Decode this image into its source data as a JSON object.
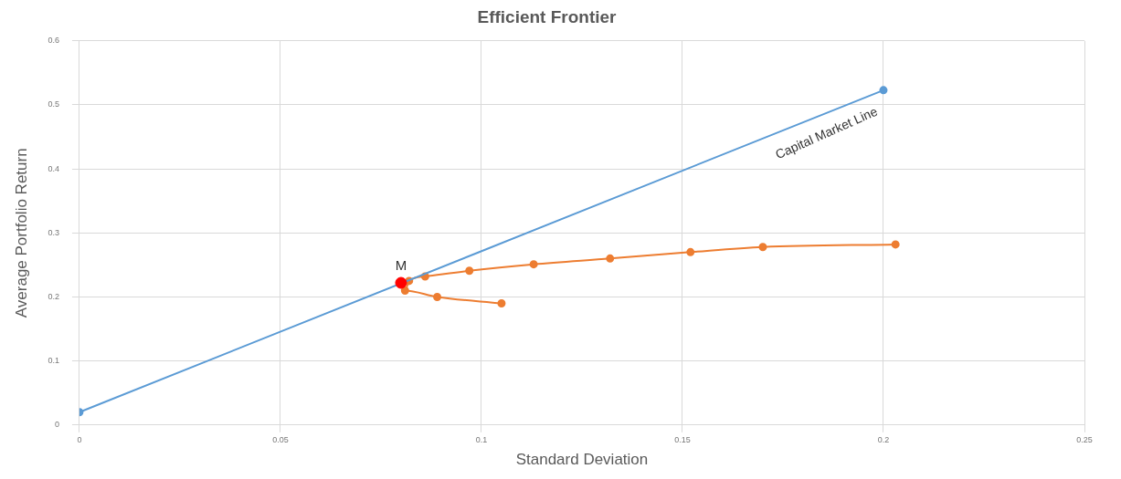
{
  "chart_data": {
    "type": "line",
    "title": "Efficient Frontier",
    "xlabel": "Standard Deviation",
    "ylabel": "Average Portfolio Return",
    "series": [
      {
        "color": "#5b9bd5",
        "x": [
          0,
          0.2
        ],
        "values": [
          0.02,
          0.523
        ]
      },
      {
        "color": "#ed7d31",
        "x": [
          0.105,
          0.089,
          0.081,
          0.082,
          0.086,
          0.097,
          0.113,
          0.132,
          0.152,
          0.17,
          0.203
        ],
        "values": [
          0.19,
          0.2,
          0.21,
          0.225,
          0.232,
          0.241,
          0.251,
          0.26,
          0.27,
          0.278,
          0.282
        ]
      },
      {
        "type": "scatter",
        "color": "#ff0000",
        "x": [
          0.08
        ],
        "values": [
          0.222
        ]
      }
    ],
    "xlim": [
      0,
      0.25
    ],
    "xticks": [
      0,
      0.05,
      0.1,
      0.15,
      0.2,
      0.25
    ],
    "ylim": [
      0,
      0.6
    ],
    "yticks": [
      0,
      0.1,
      0.2,
      0.3,
      0.4,
      0.5,
      0.6
    ],
    "grid": true,
    "marker": "circle",
    "annotations": [
      {
        "text": "M",
        "x": 0.08,
        "y": 0.222
      },
      "Capital Market Line"
    ]
  }
}
